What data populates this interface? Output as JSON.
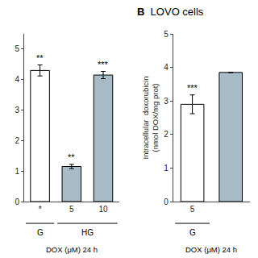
{
  "chart_data": [
    {
      "type": "bar",
      "categories": [
        "*",
        "5",
        "10"
      ],
      "values": [
        4.3,
        1.15,
        4.15
      ],
      "errors": [
        0.18,
        0.07,
        0.12
      ],
      "colors": [
        "#ffffff",
        "#a8bcc8",
        "#a8bcc8"
      ],
      "annotations": [
        {
          "text": "**",
          "category": "*"
        },
        {
          "text": "**",
          "category": "5"
        },
        {
          "text": "***",
          "category": "10"
        }
      ],
      "groups": [
        {
          "label": "G",
          "categories": [
            "*"
          ]
        },
        {
          "label": "HG",
          "categories": [
            "5",
            "10"
          ]
        }
      ],
      "xlabel": "DOX (μM) 24 h",
      "ylim": [
        0,
        5.5
      ],
      "yticks": [
        0,
        1,
        2,
        3,
        4,
        5
      ],
      "grid": false
    },
    {
      "type": "bar",
      "title": "B",
      "subtitle": "LOVO cells",
      "categories": [
        "5",
        null
      ],
      "values": [
        2.9,
        3.85
      ],
      "errors": [
        0.28,
        0.0
      ],
      "colors": [
        "#ffffff",
        "#a8bcc8"
      ],
      "annotations": [
        {
          "text": "***",
          "category": "5"
        }
      ],
      "groups": [
        {
          "label": "G",
          "categories": [
            "5"
          ]
        }
      ],
      "xlabel": "DOX (μM) 24 h",
      "ylabel": "Intracellular  doxorubicin\n(nmol DOX/mg prot)",
      "ylim": [
        0,
        5
      ],
      "yticks": [
        0,
        1,
        2,
        3,
        4,
        5
      ],
      "grid": false
    }
  ]
}
